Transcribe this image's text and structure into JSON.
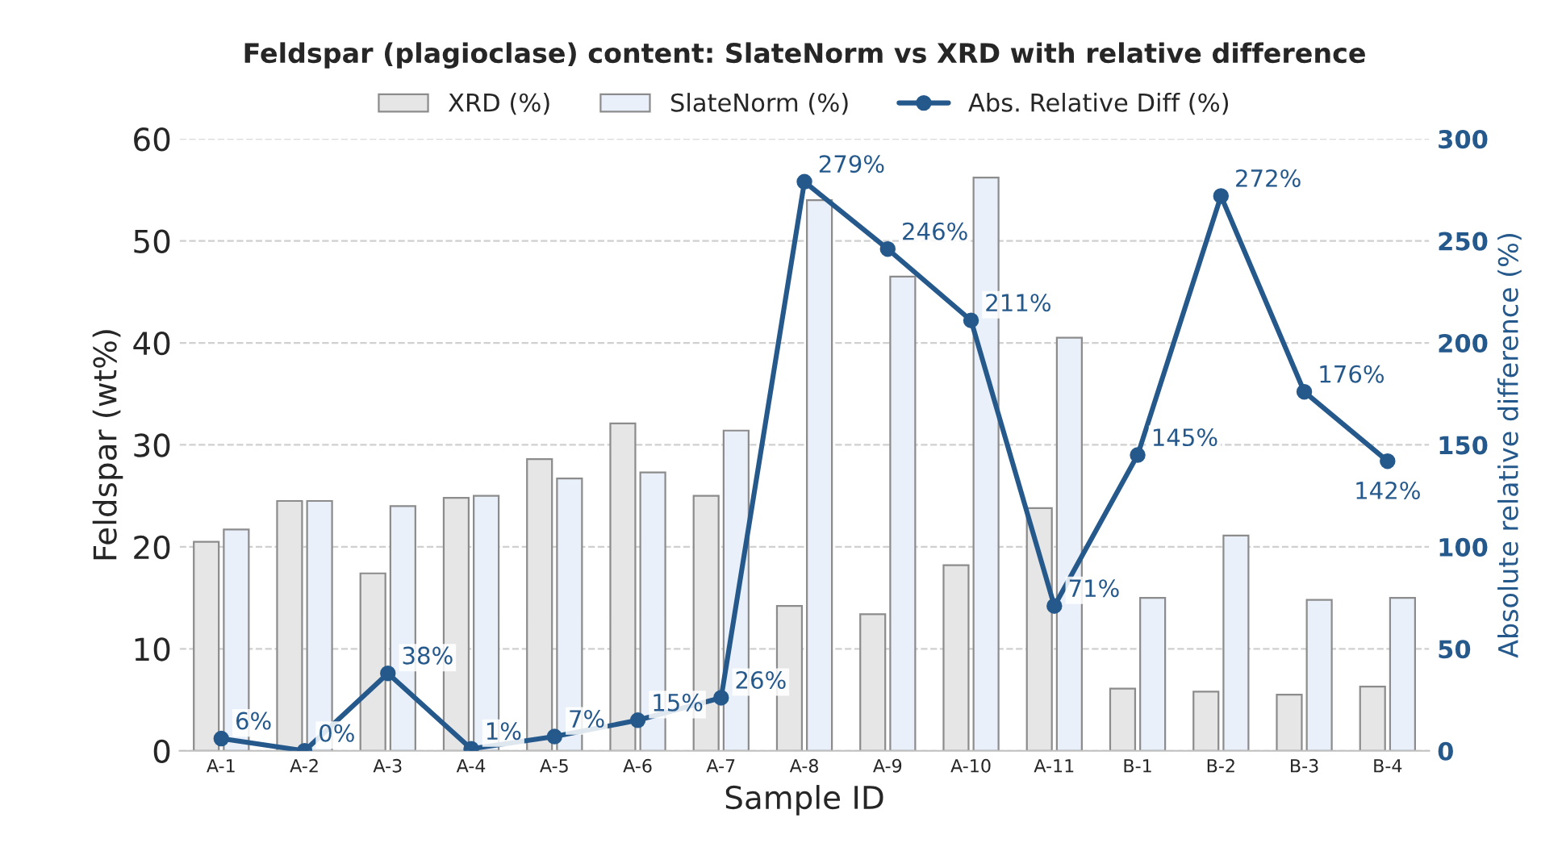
{
  "chart_data": {
    "type": "bar",
    "title": "Feldspar (plagioclase) content: SlateNorm vs XRD with relative difference",
    "xlabel": "Sample ID",
    "ylabel": "Feldspar (wt%)",
    "y2label": "Absolute relative difference (%)",
    "categories": [
      "A-1",
      "A-2",
      "A-3",
      "A-4",
      "A-5",
      "A-6",
      "A-7",
      "A-8",
      "A-9",
      "A-10",
      "A-11",
      "B-1",
      "B-2",
      "B-3",
      "B-4"
    ],
    "series": [
      {
        "name": "XRD (%)",
        "color": "#e6e6e6",
        "values": [
          20.5,
          24.5,
          17.4,
          24.8,
          28.6,
          32.1,
          25.0,
          14.2,
          13.4,
          18.2,
          23.8,
          6.1,
          5.8,
          5.5,
          6.3
        ]
      },
      {
        "name": "SlateNorm (%)",
        "color": "#e9f0f9",
        "values": [
          21.7,
          24.5,
          24.0,
          25.0,
          26.7,
          27.3,
          31.4,
          54.0,
          46.5,
          56.2,
          40.5,
          15.0,
          21.1,
          14.8,
          15.0
        ]
      },
      {
        "name": "Abs. Relative Diff (%)",
        "type": "line",
        "axis": "y2",
        "color": "#25598c",
        "marker": "circle",
        "values": [
          6,
          0,
          38,
          1,
          7,
          15,
          26,
          279,
          246,
          211,
          71,
          145,
          272,
          176,
          142
        ],
        "value_labels": [
          "6%",
          "0%",
          "38%",
          "1%",
          "7%",
          "15%",
          "26%",
          "279%",
          "246%",
          "211%",
          "71%",
          "145%",
          "272%",
          "176%",
          "142%"
        ]
      }
    ],
    "ylim": [
      0,
      60
    ],
    "yticks": [
      0,
      10,
      20,
      30,
      40,
      50,
      60
    ],
    "y2lim": [
      0,
      300
    ],
    "y2ticks": [
      0,
      50,
      100,
      150,
      200,
      250,
      300
    ],
    "grid": "y",
    "legend": "top"
  }
}
